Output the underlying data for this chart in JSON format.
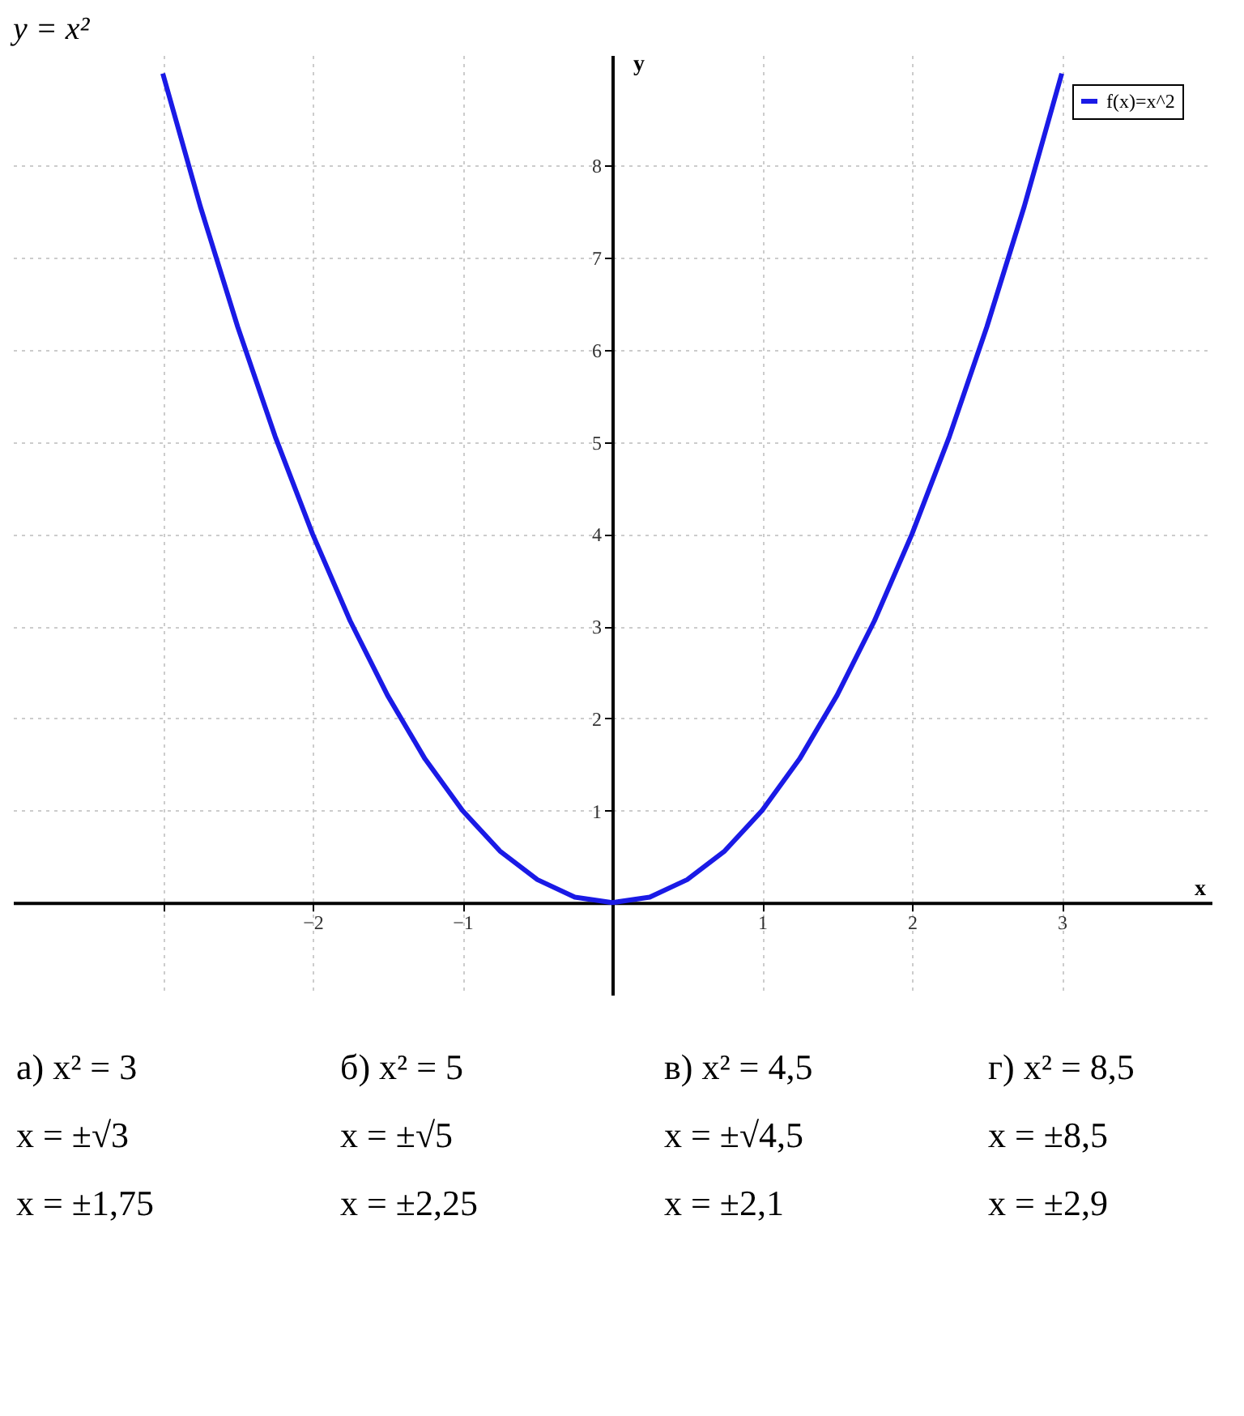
{
  "chart_data": {
    "type": "line",
    "title": "y = x²",
    "xlabel": "x",
    "ylabel": "y",
    "x": [
      -3,
      -2.75,
      -2.5,
      -2.25,
      -2,
      -1.75,
      -1.5,
      -1.25,
      -1,
      -0.75,
      -0.5,
      -0.25,
      0,
      0.25,
      0.5,
      0.75,
      1,
      1.25,
      1.5,
      1.75,
      2,
      2.25,
      2.5,
      2.75,
      3
    ],
    "series": [
      {
        "name": "f(x)=x^2",
        "color": "#1a1ae6",
        "values": [
          9,
          7.56,
          6.25,
          5.06,
          4,
          3.06,
          2.25,
          1.56,
          1,
          0.56,
          0.25,
          0.06,
          0,
          0.06,
          0.25,
          0.56,
          1,
          1.56,
          2.25,
          3.06,
          4,
          5.06,
          6.25,
          7.56,
          9
        ]
      }
    ],
    "xlim": [
      -4,
      4
    ],
    "ylim": [
      -1,
      9.2
    ],
    "xticks": [
      {
        "value": -3,
        "label": null
      },
      -2,
      -1,
      1,
      2,
      3
    ],
    "yticks": [
      1,
      2,
      3,
      4,
      5,
      6,
      7,
      8
    ],
    "grid": true,
    "legend": "top right",
    "marker": "none",
    "line_style": "solid",
    "annotations": [
      "а) x² = 3",
      "x = ±√3",
      "x = ±1,75",
      "б) x² = 5",
      "x = ±√5",
      "x = ±2,25",
      "в) x² = 4,5",
      "x = ±√4,5",
      "x = ±2,1",
      "г) x² = 8,5",
      "x = ±8,5",
      "x = ±2,9"
    ]
  }
}
